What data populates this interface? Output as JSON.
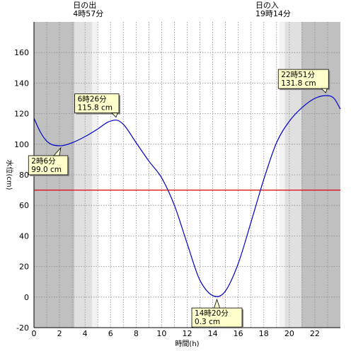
{
  "chart_data": {
    "type": "line",
    "xlabel": "時間(h)",
    "ylabel": "水位(cm)",
    "xlim": [
      0,
      24
    ],
    "ylim": [
      -20,
      180
    ],
    "x_ticks": [
      0,
      2,
      4,
      6,
      8,
      10,
      12,
      14,
      16,
      18,
      20,
      22
    ],
    "y_ticks": [
      -20,
      0,
      20,
      40,
      60,
      80,
      100,
      120,
      140,
      160
    ],
    "grid": true,
    "reference_line": {
      "value": 70,
      "color": "#dd0000"
    },
    "series": [
      {
        "color": "#0000cc",
        "x": [
          0,
          0.5,
          1,
          1.5,
          2.1,
          3,
          4,
          5,
          5.8,
          6.43,
          7,
          8,
          9,
          10,
          11,
          12,
          13,
          14.33,
          15,
          16,
          17,
          18,
          19,
          20,
          21,
          22,
          22.85,
          23.5,
          24
        ],
        "y": [
          117,
          108,
          102,
          99.5,
          99.0,
          101,
          105,
          110,
          114.5,
          115.8,
          113,
          101,
          89,
          78,
          60,
          35,
          11,
          0.3,
          4,
          22,
          49,
          77,
          101,
          115,
          124,
          130,
          131.8,
          130,
          123
        ]
      }
    ],
    "annotations": [
      {
        "label": "2時6分",
        "value": "99.0 cm",
        "x": 2.1,
        "y": 99.0
      },
      {
        "label": "6時26分",
        "value": "115.8 cm",
        "x": 6.43,
        "y": 115.8
      },
      {
        "label": "14時20分",
        "value": "0.3 cm",
        "x": 14.33,
        "y": 0.3
      },
      {
        "label": "22時51分",
        "value": "131.8 cm",
        "x": 22.85,
        "y": 131.8
      }
    ],
    "sun": {
      "sunrise_label": "日の出",
      "sunrise_time": "4時57分",
      "sunrise_x": 4.95,
      "sunset_label": "日の入",
      "sunset_time": "19時14分",
      "sunset_x": 19.23,
      "dark_to": 3.17,
      "twilight_mid_to": 4.55,
      "twilight_light_to": 5.0,
      "twilight_light_from": 19.2,
      "twilight_mid_from": 19.65,
      "dark_from": 20.95
    },
    "colors": {
      "night": "#c0c0c0",
      "twilight": "#e0e0e0",
      "dawn": "#f2f2f2"
    }
  }
}
